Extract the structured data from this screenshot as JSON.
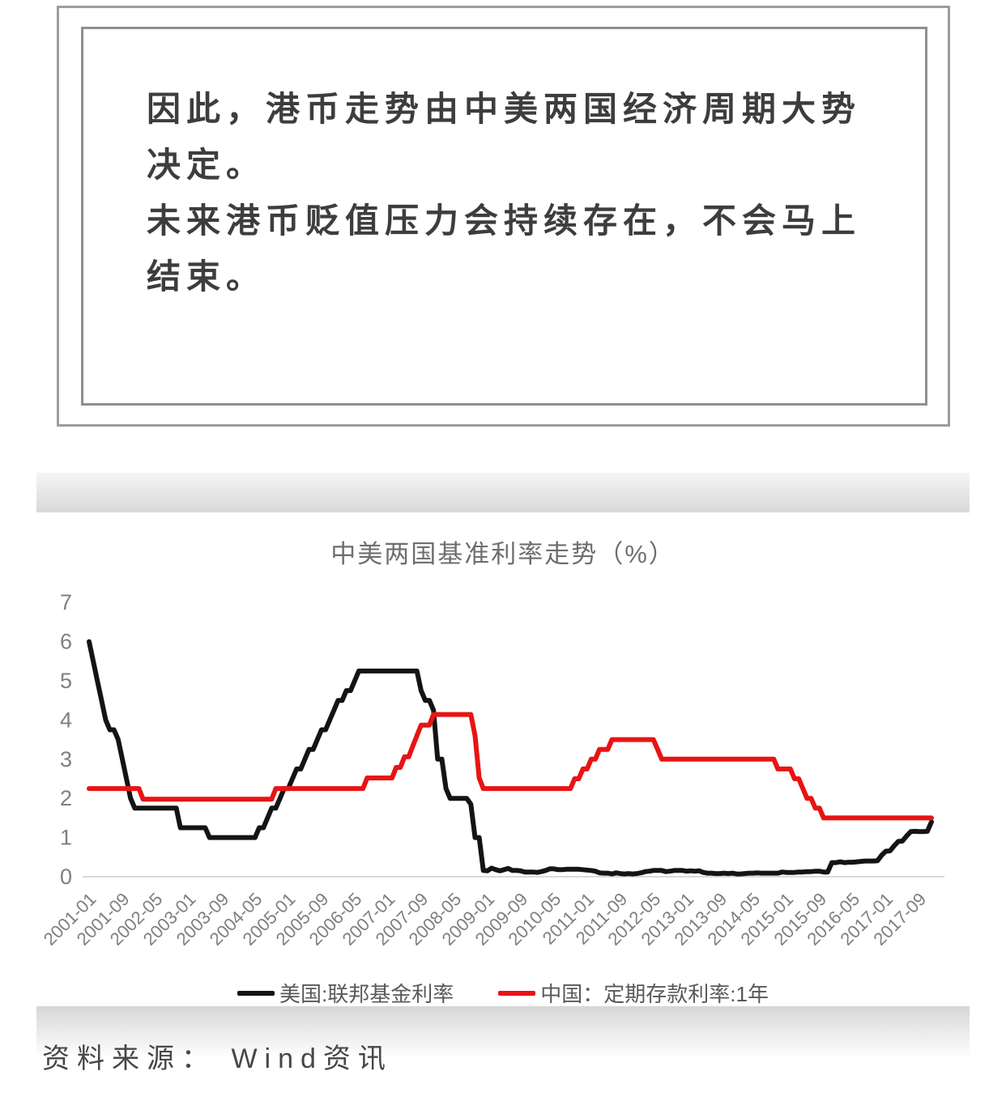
{
  "quote": {
    "paragraph1": "因此，港币走势由中美两国经济周期大势决定。",
    "paragraph2": "未来港币贬值压力会持续存在，不会马上结束。"
  },
  "source": {
    "text": "资料来源： Wind资讯"
  },
  "colors": {
    "frame_border": "#9c9c9c",
    "quote_text": "#3d3d3d",
    "title_gray": "#6e6e6e",
    "axis_label_gray": "#7f7f7f",
    "legend_text_gray": "#595959",
    "us_line_black": "#141414",
    "china_line_red": "#e81414",
    "baseline_gray": "#d9d9d9"
  },
  "chart_data": {
    "type": "line",
    "title": "中美两国基准利率走势（%）",
    "x_start": "2001-01",
    "x_end": "2017-12",
    "x_interval": "monthly",
    "xtick_every_n_months": 8,
    "xtick_labels": [
      "2001-01",
      "2001-09",
      "2002-05",
      "2003-01",
      "2003-09",
      "2004-05",
      "2005-01",
      "2005-09",
      "2006-05",
      "2007-01",
      "2007-09",
      "2008-05",
      "2009-01",
      "2009-09",
      "2010-05",
      "2011-01",
      "2011-09",
      "2012-05",
      "2013-01",
      "2013-09",
      "2014-05",
      "2015-01",
      "2015-09",
      "2016-05",
      "2017-01",
      "2017-09"
    ],
    "ylim": [
      0,
      7
    ],
    "yticks": [
      0,
      1,
      2,
      3,
      4,
      5,
      6,
      7
    ],
    "grid": "baseline-only",
    "legend_position": "bottom",
    "axis_color": "#d9d9d9",
    "label_color": "#7f7f7f",
    "series": [
      {
        "name": "美国:联邦基金利率",
        "color": "#141414",
        "values": [
          6,
          5.5,
          5,
          4.5,
          4,
          3.75,
          3.75,
          3.5,
          3,
          2.5,
          2,
          1.75,
          1.75,
          1.75,
          1.75,
          1.75,
          1.75,
          1.75,
          1.75,
          1.75,
          1.75,
          1.75,
          1.25,
          1.25,
          1.25,
          1.25,
          1.25,
          1.25,
          1.25,
          1,
          1,
          1,
          1,
          1,
          1,
          1,
          1,
          1,
          1,
          1,
          1,
          1.25,
          1.25,
          1.5,
          1.75,
          1.75,
          2,
          2.25,
          2.25,
          2.5,
          2.75,
          2.75,
          3,
          3.25,
          3.25,
          3.5,
          3.75,
          3.75,
          4,
          4.25,
          4.5,
          4.5,
          4.75,
          4.75,
          5,
          5.25,
          5.25,
          5.25,
          5.25,
          5.25,
          5.25,
          5.25,
          5.25,
          5.25,
          5.25,
          5.25,
          5.25,
          5.25,
          5.25,
          5.25,
          4.75,
          4.5,
          4.5,
          4.25,
          3,
          3,
          2.25,
          2,
          2,
          2,
          2,
          2,
          1.85,
          1,
          1,
          0.16,
          0.15,
          0.22,
          0.18,
          0.15,
          0.18,
          0.21,
          0.16,
          0.16,
          0.15,
          0.12,
          0.12,
          0.12,
          0.11,
          0.13,
          0.16,
          0.2,
          0.2,
          0.18,
          0.18,
          0.19,
          0.19,
          0.19,
          0.19,
          0.18,
          0.17,
          0.16,
          0.14,
          0.1,
          0.09,
          0.09,
          0.07,
          0.1,
          0.08,
          0.07,
          0.08,
          0.07,
          0.08,
          0.1,
          0.13,
          0.14,
          0.16,
          0.16,
          0.16,
          0.13,
          0.14,
          0.16,
          0.16,
          0.16,
          0.14,
          0.15,
          0.14,
          0.15,
          0.11,
          0.09,
          0.09,
          0.08,
          0.08,
          0.09,
          0.08,
          0.09,
          0.07,
          0.07,
          0.08,
          0.09,
          0.09,
          0.1,
          0.09,
          0.09,
          0.09,
          0.09,
          0.09,
          0.12,
          0.11,
          0.11,
          0.11,
          0.12,
          0.12,
          0.13,
          0.13,
          0.14,
          0.14,
          0.12,
          0.12,
          0.36,
          0.36,
          0.38,
          0.36,
          0.37,
          0.37,
          0.38,
          0.39,
          0.4,
          0.4,
          0.4,
          0.41,
          0.55,
          0.65,
          0.66,
          0.79,
          0.9,
          0.91,
          1.04,
          1.15,
          1.16,
          1.15,
          1.15,
          1.16,
          1.4
        ]
      },
      {
        "name": "中国：定期存款利率:1年",
        "color": "#e81414",
        "values": [
          2.25,
          2.25,
          2.25,
          2.25,
          2.25,
          2.25,
          2.25,
          2.25,
          2.25,
          2.25,
          2.25,
          2.25,
          2.25,
          1.98,
          1.98,
          1.98,
          1.98,
          1.98,
          1.98,
          1.98,
          1.98,
          1.98,
          1.98,
          1.98,
          1.98,
          1.98,
          1.98,
          1.98,
          1.98,
          1.98,
          1.98,
          1.98,
          1.98,
          1.98,
          1.98,
          1.98,
          1.98,
          1.98,
          1.98,
          1.98,
          1.98,
          1.98,
          1.98,
          1.98,
          1.98,
          2.25,
          2.25,
          2.25,
          2.25,
          2.25,
          2.25,
          2.25,
          2.25,
          2.25,
          2.25,
          2.25,
          2.25,
          2.25,
          2.25,
          2.25,
          2.25,
          2.25,
          2.25,
          2.25,
          2.25,
          2.25,
          2.25,
          2.52,
          2.52,
          2.52,
          2.52,
          2.52,
          2.52,
          2.52,
          2.79,
          2.79,
          3.06,
          3.06,
          3.33,
          3.6,
          3.87,
          3.87,
          3.87,
          4.14,
          4.14,
          4.14,
          4.14,
          4.14,
          4.14,
          4.14,
          4.14,
          4.14,
          4.14,
          3.6,
          2.52,
          2.25,
          2.25,
          2.25,
          2.25,
          2.25,
          2.25,
          2.25,
          2.25,
          2.25,
          2.25,
          2.25,
          2.25,
          2.25,
          2.25,
          2.25,
          2.25,
          2.25,
          2.25,
          2.25,
          2.25,
          2.25,
          2.25,
          2.5,
          2.5,
          2.75,
          2.75,
          3,
          3,
          3.25,
          3.25,
          3.25,
          3.5,
          3.5,
          3.5,
          3.5,
          3.5,
          3.5,
          3.5,
          3.5,
          3.5,
          3.5,
          3.5,
          3.25,
          3,
          3,
          3,
          3,
          3,
          3,
          3,
          3,
          3,
          3,
          3,
          3,
          3,
          3,
          3,
          3,
          3,
          3,
          3,
          3,
          3,
          3,
          3,
          3,
          3,
          3,
          3,
          3,
          2.75,
          2.75,
          2.75,
          2.75,
          2.5,
          2.5,
          2.25,
          2,
          2,
          1.75,
          1.75,
          1.5,
          1.5,
          1.5,
          1.5,
          1.5,
          1.5,
          1.5,
          1.5,
          1.5,
          1.5,
          1.5,
          1.5,
          1.5,
          1.5,
          1.5,
          1.5,
          1.5,
          1.5,
          1.5,
          1.5,
          1.5,
          1.5,
          1.5,
          1.5,
          1.5,
          1.5,
          1.5
        ]
      }
    ]
  }
}
